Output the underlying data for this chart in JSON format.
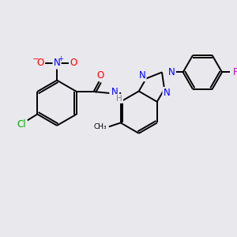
{
  "background_color": "#e8e8ed",
  "bond_color": "#000000",
  "atom_colors": {
    "N": "#0000ff",
    "O": "#ff0000",
    "Cl": "#00aa00",
    "F": "#cc00cc",
    "H": "#888888",
    "C": "#000000"
  },
  "lw": 1.4,
  "fontsize": 8.5
}
